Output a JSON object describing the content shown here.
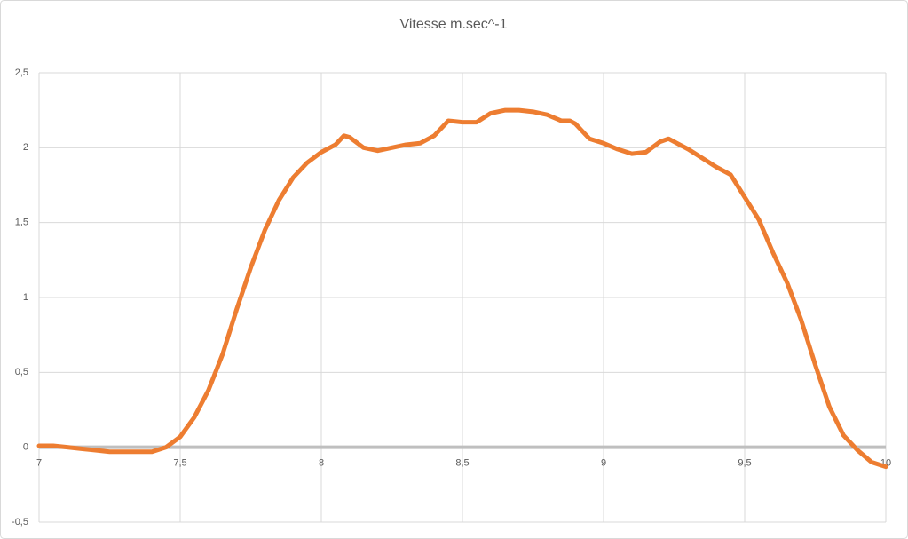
{
  "chart_data": {
    "type": "line",
    "title": "Vitesse m.sec^-1",
    "x": [
      7.0,
      7.05,
      7.1,
      7.15,
      7.2,
      7.25,
      7.3,
      7.35,
      7.4,
      7.45,
      7.5,
      7.55,
      7.6,
      7.65,
      7.7,
      7.75,
      7.8,
      7.85,
      7.9,
      7.95,
      8.0,
      8.05,
      8.08,
      8.1,
      8.15,
      8.2,
      8.25,
      8.3,
      8.35,
      8.4,
      8.45,
      8.5,
      8.55,
      8.6,
      8.65,
      8.7,
      8.75,
      8.8,
      8.85,
      8.88,
      8.9,
      8.95,
      9.0,
      9.05,
      9.1,
      9.15,
      9.2,
      9.23,
      9.25,
      9.3,
      9.35,
      9.4,
      9.45,
      9.5,
      9.55,
      9.6,
      9.65,
      9.7,
      9.75,
      9.8,
      9.85,
      9.9,
      9.95,
      10.0
    ],
    "series": [
      {
        "name": "Vitesse",
        "color": "#ed7d31",
        "values": [
          0.01,
          0.01,
          0.0,
          -0.01,
          -0.02,
          -0.03,
          -0.03,
          -0.03,
          -0.03,
          0.0,
          0.07,
          0.2,
          0.38,
          0.62,
          0.92,
          1.2,
          1.45,
          1.65,
          1.8,
          1.9,
          1.97,
          2.02,
          2.08,
          2.07,
          2.0,
          1.98,
          2.0,
          2.02,
          2.03,
          2.08,
          2.18,
          2.17,
          2.17,
          2.23,
          2.25,
          2.25,
          2.24,
          2.22,
          2.18,
          2.18,
          2.16,
          2.06,
          2.03,
          1.99,
          1.96,
          1.97,
          2.04,
          2.06,
          2.04,
          1.99,
          1.93,
          1.87,
          1.82,
          1.67,
          1.52,
          1.3,
          1.1,
          0.85,
          0.55,
          0.27,
          0.08,
          -0.02,
          -0.1,
          -0.13
        ]
      }
    ],
    "xlim": [
      7,
      10
    ],
    "xticks": [
      7,
      {
        "value": 7.5,
        "label": "7,5"
      },
      8,
      {
        "value": 8.5,
        "label": "8,5"
      },
      9,
      {
        "value": 9.5,
        "label": "9,5"
      },
      10
    ],
    "ylim": [
      -0.5,
      2.5
    ],
    "yticks": [
      {
        "value": -0.5,
        "label": "-0,5"
      },
      0,
      {
        "value": 0.5,
        "label": "0,5"
      },
      1,
      {
        "value": 1.5,
        "label": "1,5"
      },
      2,
      {
        "value": 2.5,
        "label": "2,5"
      }
    ],
    "grid": true
  }
}
